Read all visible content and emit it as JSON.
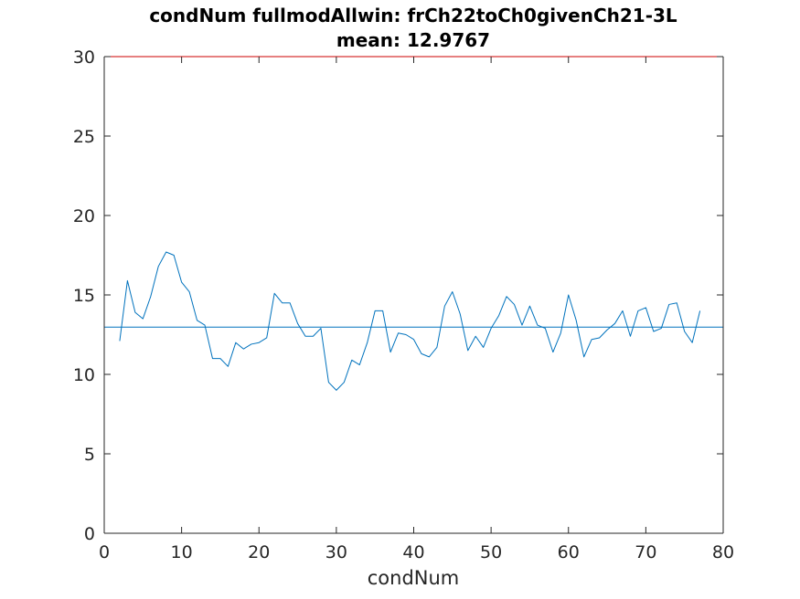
{
  "chart_data": {
    "type": "line",
    "title": "condNum fullmodAllwin: frCh22toCh0givenCh21-3L",
    "subtitle": "mean: 12.9767",
    "xlabel": "condNum",
    "ylabel": "",
    "xlim": [
      0,
      80
    ],
    "ylim": [
      0,
      30
    ],
    "xticks": [
      0,
      10,
      20,
      30,
      40,
      50,
      60,
      70,
      80
    ],
    "yticks": [
      0,
      5,
      10,
      15,
      20,
      25,
      30
    ],
    "grid": false,
    "mean_line": 12.9767,
    "colors": {
      "series": "#0072bd",
      "mean": "#0072bd",
      "top_border": "#cc0000",
      "axes": "#262626"
    },
    "series": [
      {
        "x": [
          2,
          3,
          4,
          5,
          6,
          7,
          8,
          9,
          10,
          11,
          12,
          13,
          14,
          15,
          16,
          17,
          18,
          19,
          20,
          21,
          22,
          23,
          24,
          25,
          26,
          27,
          28,
          29,
          30,
          31,
          32,
          33,
          34,
          35,
          36,
          37,
          38,
          39,
          40,
          41,
          42,
          43,
          44,
          45,
          46,
          47,
          48,
          49,
          50,
          51,
          52,
          53,
          54,
          55,
          56,
          57,
          58,
          59,
          60,
          61,
          62,
          63,
          64,
          65,
          66,
          67,
          68,
          69,
          70,
          71,
          72,
          73,
          74,
          75,
          76,
          77
        ],
        "values": [
          12.1,
          15.9,
          13.9,
          13.5,
          14.9,
          16.8,
          17.7,
          17.5,
          15.8,
          15.2,
          13.4,
          13.1,
          11.0,
          11.0,
          10.5,
          12.0,
          11.6,
          11.9,
          12.0,
          12.3,
          15.1,
          14.5,
          14.5,
          13.2,
          12.4,
          12.4,
          12.9,
          9.5,
          9.0,
          9.5,
          10.9,
          10.6,
          12.0,
          14.0,
          14.0,
          11.4,
          12.6,
          12.5,
          12.2,
          11.3,
          11.1,
          11.7,
          14.3,
          15.2,
          13.8,
          11.5,
          12.4,
          11.7,
          12.9,
          13.7,
          14.9,
          14.4,
          13.1,
          14.3,
          13.1,
          12.9,
          11.4,
          12.6,
          15.0,
          13.4,
          11.1,
          12.2,
          12.3,
          12.8,
          13.2,
          14.0,
          12.4,
          14.0,
          14.2,
          12.7,
          12.9,
          14.4,
          14.5,
          12.7,
          12.0,
          14.0
        ]
      }
    ]
  }
}
